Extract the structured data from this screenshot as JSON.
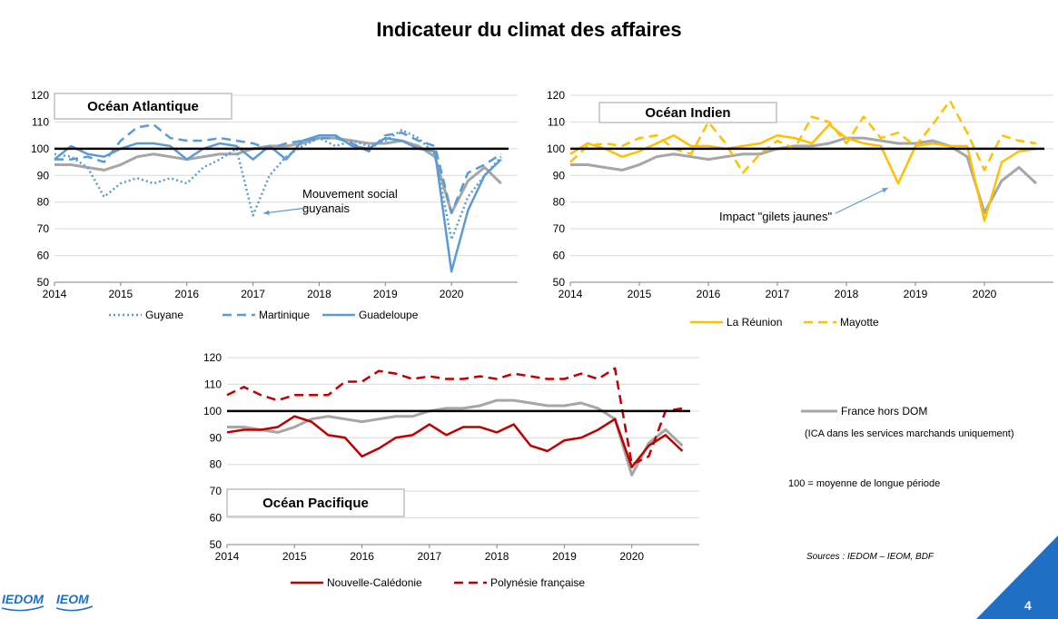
{
  "page_title": "Indicateur du climat des affaires",
  "page_number": "4",
  "logos": [
    "IEDOM",
    "IEOM"
  ],
  "notes": {
    "france_legend": "France hors DOM",
    "ica_note": "(ICA dans les services marchands uniquement)",
    "base_note": "100 = moyenne de longue période",
    "sources": "Sources : IEDOM – IEOM, BDF"
  },
  "colors": {
    "guyane": "#5b9bd5",
    "martinique": "#5b9bd5",
    "guadeloupe": "#5b9bd5",
    "reunion": "#ffc000",
    "mayotte": "#ffc000",
    "caledonie": "#c00000",
    "polynesie": "#c00000",
    "france": "#a6a6a6",
    "accent": "#1f6fc5"
  },
  "chart_data": [
    {
      "id": "atlantique",
      "type": "line",
      "title": "Océan Atlantique",
      "x_tick_labels": [
        "2014",
        "2015",
        "2016",
        "2017",
        "2018",
        "2019",
        "2020"
      ],
      "x_range": [
        2014,
        2021
      ],
      "ylim": [
        50,
        120
      ],
      "y_ticks": [
        50,
        60,
        70,
        80,
        90,
        100,
        110,
        120
      ],
      "reference_line": 100,
      "annotation": [
        "Mouvement social",
        "guyanais"
      ],
      "series": [
        {
          "name": "Guyane",
          "style": "dotted",
          "color_key": "guyane",
          "x": [
            2014,
            2014.25,
            2014.5,
            2014.75,
            2015,
            2015.25,
            2015.5,
            2015.75,
            2016,
            2016.25,
            2016.5,
            2016.75,
            2017,
            2017.25,
            2017.5,
            2017.75,
            2018,
            2018.25,
            2018.5,
            2018.75,
            2019,
            2019.25,
            2019.5,
            2019.75,
            2020,
            2020.25,
            2020.5,
            2020.75
          ],
          "values": [
            98,
            97,
            93,
            82,
            87,
            89,
            87,
            89,
            87,
            93,
            96,
            100,
            75,
            90,
            97,
            101,
            104,
            101,
            103,
            101,
            103,
            107,
            104,
            98,
            66,
            82,
            90,
            97
          ]
        },
        {
          "name": "Martinique",
          "style": "dashed",
          "color_key": "martinique",
          "x": [
            2014,
            2014.25,
            2014.5,
            2014.75,
            2015,
            2015.25,
            2015.5,
            2015.75,
            2016,
            2016.25,
            2016.5,
            2016.75,
            2017,
            2017.25,
            2017.5,
            2017.75,
            2018,
            2018.25,
            2018.5,
            2018.75,
            2019,
            2019.25,
            2019.5,
            2019.75,
            2020,
            2020.25,
            2020.5,
            2020.75
          ],
          "values": [
            96,
            96,
            97,
            95,
            103,
            108,
            109,
            104,
            103,
            103,
            104,
            103,
            102,
            100,
            102,
            103,
            104,
            104,
            102,
            99,
            105,
            106,
            103,
            101,
            76,
            91,
            94,
            98
          ]
        },
        {
          "name": "Guadeloupe",
          "style": "solid",
          "color_key": "guadeloupe",
          "x": [
            2014,
            2014.25,
            2014.5,
            2014.75,
            2015,
            2015.25,
            2015.5,
            2015.75,
            2016,
            2016.25,
            2016.5,
            2016.75,
            2017,
            2017.25,
            2017.5,
            2017.75,
            2018,
            2018.25,
            2018.5,
            2018.75,
            2019,
            2019.25,
            2019.5,
            2019.75,
            2020,
            2020.25,
            2020.5,
            2020.75
          ],
          "values": [
            96,
            101,
            98,
            97,
            100,
            102,
            102,
            101,
            96,
            100,
            102,
            101,
            96,
            101,
            96,
            103,
            105,
            105,
            101,
            100,
            104,
            103,
            100,
            99,
            54,
            77,
            90,
            96
          ]
        },
        {
          "name": "France hors DOM",
          "style": "solid",
          "color_key": "france",
          "legend": false,
          "x": [
            2014,
            2014.25,
            2014.5,
            2014.75,
            2015,
            2015.25,
            2015.5,
            2015.75,
            2016,
            2016.25,
            2016.5,
            2016.75,
            2017,
            2017.25,
            2017.5,
            2017.75,
            2018,
            2018.25,
            2018.5,
            2018.75,
            2019,
            2019.25,
            2019.5,
            2019.75,
            2020,
            2020.25,
            2020.5,
            2020.75
          ],
          "values": [
            94,
            94,
            93,
            92,
            94,
            97,
            98,
            97,
            96,
            97,
            98,
            98,
            100,
            101,
            101,
            102,
            104,
            104,
            103,
            102,
            102,
            103,
            101,
            97,
            76,
            88,
            93,
            87
          ]
        }
      ]
    },
    {
      "id": "indien",
      "type": "line",
      "title": "Océan Indien",
      "x_tick_labels": [
        "2014",
        "2015",
        "2016",
        "2017",
        "2018",
        "2019",
        "2020"
      ],
      "x_range": [
        2014,
        2021
      ],
      "ylim": [
        50,
        120
      ],
      "y_ticks": [
        50,
        60,
        70,
        80,
        90,
        100,
        110,
        120
      ],
      "reference_line": 100,
      "annotation": [
        "Impact \"gilets jaunes\""
      ],
      "series": [
        {
          "name": "La Réunion",
          "style": "solid",
          "color_key": "reunion",
          "x": [
            2014,
            2014.25,
            2014.5,
            2014.75,
            2015,
            2015.25,
            2015.5,
            2015.75,
            2016,
            2016.25,
            2016.5,
            2016.75,
            2017,
            2017.25,
            2017.5,
            2017.75,
            2018,
            2018.25,
            2018.5,
            2018.75,
            2019,
            2019.25,
            2019.5,
            2019.75,
            2020,
            2020.25,
            2020.5,
            2020.75
          ],
          "values": [
            98,
            102,
            100,
            97,
            99,
            102,
            105,
            101,
            101,
            100,
            101,
            102,
            105,
            104,
            102,
            109,
            104,
            102,
            101,
            87,
            101,
            102,
            101,
            101,
            73,
            95,
            99,
            100
          ]
        },
        {
          "name": "Mayotte",
          "style": "dashed",
          "color_key": "mayotte",
          "x": [
            2014,
            2014.25,
            2014.5,
            2014.75,
            2015,
            2015.25,
            2015.5,
            2015.75,
            2016,
            2016.25,
            2016.5,
            2016.75,
            2017,
            2017.25,
            2017.5,
            2017.75,
            2018,
            2018.25,
            2018.5,
            2018.75,
            2019,
            2019.25,
            2019.5,
            2019.75,
            2020,
            2020.25,
            2020.5,
            2020.75
          ],
          "values": [
            95,
            101,
            102,
            101,
            104,
            105,
            100,
            98,
            110,
            102,
            91,
            98,
            103,
            100,
            112,
            110,
            102,
            112,
            104,
            106,
            101,
            109,
            118,
            106,
            92,
            105,
            103,
            102
          ]
        },
        {
          "name": "France hors DOM",
          "style": "solid",
          "color_key": "france",
          "legend": false,
          "x": [
            2014,
            2014.25,
            2014.5,
            2014.75,
            2015,
            2015.25,
            2015.5,
            2015.75,
            2016,
            2016.25,
            2016.5,
            2016.75,
            2017,
            2017.25,
            2017.5,
            2017.75,
            2018,
            2018.25,
            2018.5,
            2018.75,
            2019,
            2019.25,
            2019.5,
            2019.75,
            2020,
            2020.25,
            2020.5,
            2020.75
          ],
          "values": [
            94,
            94,
            93,
            92,
            94,
            97,
            98,
            97,
            96,
            97,
            98,
            98,
            100,
            101,
            101,
            102,
            104,
            104,
            103,
            102,
            102,
            103,
            101,
            97,
            76,
            88,
            93,
            87
          ]
        }
      ]
    },
    {
      "id": "pacifique",
      "type": "line",
      "title": "Océan Pacifique",
      "x_tick_labels": [
        "2014",
        "2015",
        "2016",
        "2017",
        "2018",
        "2019",
        "2020"
      ],
      "x_range": [
        2014,
        2021
      ],
      "ylim": [
        50,
        120
      ],
      "y_ticks": [
        50,
        60,
        70,
        80,
        90,
        100,
        110,
        120
      ],
      "reference_line": 100,
      "series": [
        {
          "name": "Nouvelle-Calédonie",
          "style": "solid",
          "color_key": "caledonie",
          "x": [
            2014,
            2014.25,
            2014.5,
            2014.75,
            2015,
            2015.25,
            2015.5,
            2015.75,
            2016,
            2016.25,
            2016.5,
            2016.75,
            2017,
            2017.25,
            2017.5,
            2017.75,
            2018,
            2018.25,
            2018.5,
            2018.75,
            2019,
            2019.25,
            2019.5,
            2019.75,
            2020,
            2020.25,
            2020.5,
            2020.75
          ],
          "values": [
            92,
            93,
            93,
            94,
            98,
            96,
            91,
            90,
            83,
            86,
            90,
            91,
            95,
            91,
            94,
            94,
            92,
            95,
            87,
            85,
            89,
            90,
            93,
            97,
            79,
            87,
            91,
            85
          ]
        },
        {
          "name": "Polynésie française",
          "style": "dashed",
          "color_key": "polynesie",
          "x": [
            2014,
            2014.25,
            2014.5,
            2014.75,
            2015,
            2015.25,
            2015.5,
            2015.75,
            2016,
            2016.25,
            2016.5,
            2016.75,
            2017,
            2017.25,
            2017.5,
            2017.75,
            2018,
            2018.25,
            2018.5,
            2018.75,
            2019,
            2019.25,
            2019.5,
            2019.75,
            2020,
            2020.25,
            2020.5,
            2020.75
          ],
          "values": [
            106,
            109,
            106,
            104,
            106,
            106,
            106,
            111,
            111,
            115,
            114,
            112,
            113,
            112,
            112,
            113,
            112,
            114,
            113,
            112,
            112,
            114,
            112,
            116,
            80,
            83,
            100,
            101
          ]
        },
        {
          "name": "France hors DOM",
          "style": "solid",
          "color_key": "france",
          "legend": false,
          "x": [
            2014,
            2014.25,
            2014.5,
            2014.75,
            2015,
            2015.25,
            2015.5,
            2015.75,
            2016,
            2016.25,
            2016.5,
            2016.75,
            2017,
            2017.25,
            2017.5,
            2017.75,
            2018,
            2018.25,
            2018.5,
            2018.75,
            2019,
            2019.25,
            2019.5,
            2019.75,
            2020,
            2020.25,
            2020.5,
            2020.75
          ],
          "values": [
            94,
            94,
            93,
            92,
            94,
            97,
            98,
            97,
            96,
            97,
            98,
            98,
            100,
            101,
            101,
            102,
            104,
            104,
            103,
            102,
            102,
            103,
            101,
            97,
            76,
            88,
            93,
            87
          ]
        }
      ]
    }
  ]
}
